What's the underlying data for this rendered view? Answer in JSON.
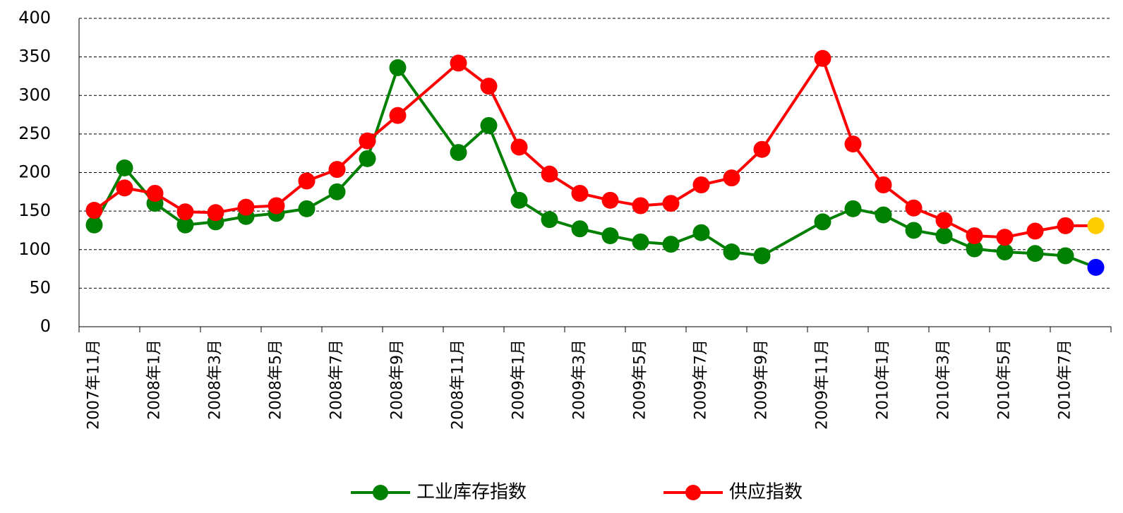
{
  "chart_data": {
    "type": "line",
    "categories": [
      "2007年11月",
      null,
      "2008年1月",
      null,
      "2008年3月",
      null,
      "2008年5月",
      null,
      "2008年7月",
      null,
      "2008年9月",
      null,
      "2008年11月",
      null,
      "2009年1月",
      null,
      "2009年3月",
      null,
      "2009年5月",
      null,
      "2009年7月",
      null,
      "2009年9月",
      null,
      "2009年11月",
      null,
      "2010年1月",
      null,
      "2010年3月",
      null,
      "2010年5月",
      null,
      "2010年7月",
      null
    ],
    "series": [
      {
        "name": "工业库存指数",
        "color": "#008000",
        "last_point_color": "#0000ff",
        "values": [
          132,
          206,
          160,
          132,
          136,
          143,
          147,
          153,
          175,
          218,
          336,
          null,
          226,
          261,
          164,
          139,
          127,
          118,
          110,
          107,
          122,
          97,
          92,
          null,
          136,
          153,
          145,
          125,
          118,
          101,
          97,
          95,
          92,
          77
        ]
      },
      {
        "name": "供应指数",
        "color": "#ff0000",
        "last_point_color": "#ffcc00",
        "values": [
          151,
          180,
          173,
          149,
          148,
          155,
          157,
          189,
          204,
          241,
          274,
          null,
          342,
          312,
          233,
          198,
          173,
          164,
          157,
          160,
          184,
          193,
          230,
          null,
          348,
          237,
          184,
          154,
          138,
          118,
          116,
          124,
          131,
          131
        ]
      }
    ],
    "ylim": [
      0,
      400
    ],
    "yticks": [
      0,
      50,
      100,
      150,
      200,
      250,
      300,
      350,
      400
    ],
    "grid": true,
    "connect_gaps": true,
    "legend": "bottom"
  }
}
